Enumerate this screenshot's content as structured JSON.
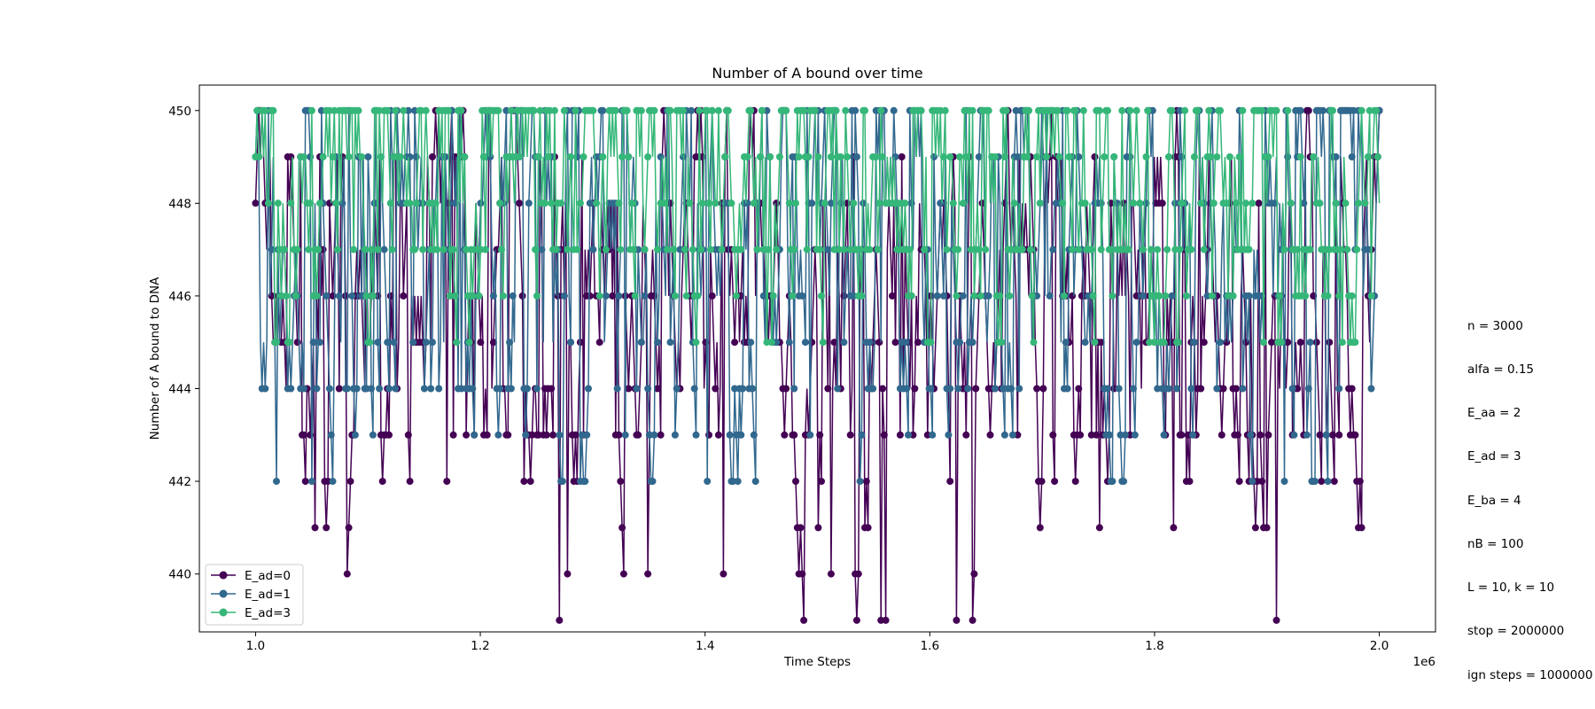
{
  "chart_data": {
    "type": "line",
    "title": "Number of A bound over time",
    "xlabel": "Time Steps",
    "ylabel": "Number of A bound to DNA",
    "x_offset_label": "1e6",
    "xlim": [
      0.95,
      2.05
    ],
    "ylim": [
      438.75,
      450.55
    ],
    "x_ticks": [
      1.0,
      1.2,
      1.4,
      1.6,
      1.8,
      2.0
    ],
    "x_tick_labels": [
      "1.0",
      "1.2",
      "1.4",
      "1.6",
      "1.8",
      "2.0"
    ],
    "y_ticks": [
      440,
      442,
      444,
      446,
      448,
      450
    ],
    "y_tick_labels": [
      "440",
      "442",
      "444",
      "446",
      "448",
      "450"
    ],
    "grid": false,
    "legend_position": "lower-left",
    "series": [
      {
        "name": "E_ad=0",
        "color": "#440154",
        "value_range": [
          439,
          450
        ],
        "typical_range": [
          443,
          449
        ]
      },
      {
        "name": "E_ad=1",
        "color": "#31688e",
        "value_range": [
          442,
          450
        ],
        "typical_range": [
          444,
          450
        ]
      },
      {
        "name": "E_ad=3",
        "color": "#35b779",
        "value_range": [
          445,
          450
        ],
        "typical_range": [
          447,
          450
        ]
      }
    ]
  },
  "annotation_lines": [
    "n = 3000",
    "alfa = 0.15",
    "E_aa = 2",
    "E_ad = 3",
    "E_ba = 4",
    "nB = 100",
    "L = 10, k = 10",
    "stop = 2000000",
    "ign steps = 1000000"
  ]
}
